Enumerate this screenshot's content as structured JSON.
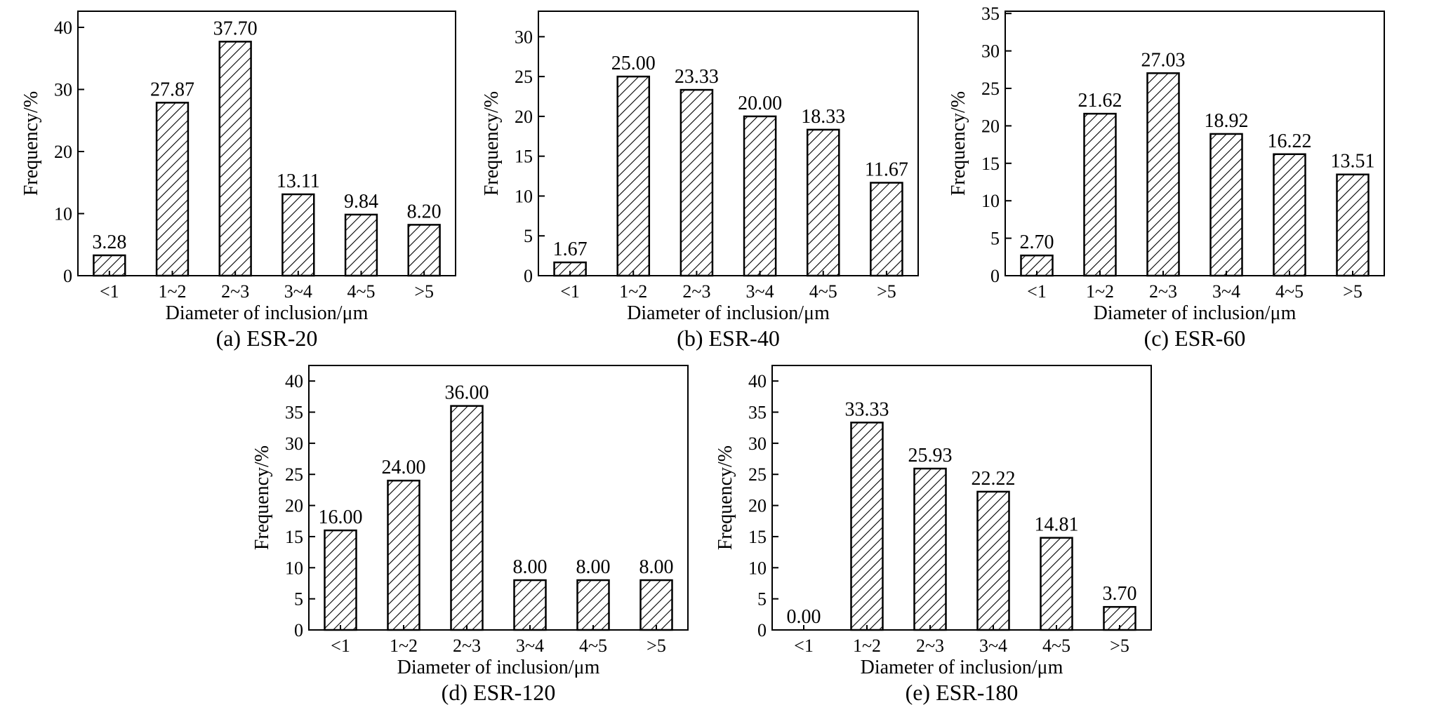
{
  "chart_data": [
    {
      "type": "bar",
      "caption": "(a) ESR-20",
      "xlabel": "Diameter of inclusion/μm",
      "ylabel": "Frequency/%",
      "categories": [
        "<1",
        "1~2",
        "2~3",
        "3~4",
        "4~5",
        ">5"
      ],
      "values": [
        3.28,
        27.87,
        37.7,
        13.11,
        9.84,
        8.2
      ],
      "value_labels": [
        "3.28",
        "27.87",
        "37.70",
        "13.11",
        "9.84",
        "8.20"
      ],
      "ylim": [
        0,
        42.6
      ],
      "yticks": [
        0,
        10,
        20,
        30,
        40
      ],
      "fill": "hatched",
      "grid": false
    },
    {
      "type": "bar",
      "caption": "(b) ESR-40",
      "xlabel": "Diameter of inclusion/μm",
      "ylabel": "Frequency/%",
      "categories": [
        "<1",
        "1~2",
        "2~3",
        "3~4",
        "4~5",
        ">5"
      ],
      "values": [
        1.67,
        25.0,
        23.33,
        20.0,
        18.33,
        11.67
      ],
      "value_labels": [
        "1.67",
        "25.00",
        "23.33",
        "20.00",
        "18.33",
        "11.67"
      ],
      "ylim": [
        0,
        33.2
      ],
      "yticks": [
        0,
        5,
        10,
        15,
        20,
        25,
        30
      ],
      "fill": "hatched",
      "grid": false
    },
    {
      "type": "bar",
      "caption": "(c) ESR-60",
      "xlabel": "Diameter of inclusion/μm",
      "ylabel": "Frequency/%",
      "categories": [
        "<1",
        "1~2",
        "2~3",
        "3~4",
        "4~5",
        ">5"
      ],
      "values": [
        2.7,
        21.62,
        27.03,
        18.92,
        16.22,
        13.51
      ],
      "value_labels": [
        "2.70",
        "21.62",
        "27.03",
        "18.92",
        "16.22",
        "13.51"
      ],
      "ylim": [
        0,
        35.3
      ],
      "yticks": [
        0,
        5,
        10,
        15,
        20,
        25,
        30,
        35
      ],
      "fill": "hatched",
      "grid": false
    },
    {
      "type": "bar",
      "caption": "(d) ESR-120",
      "xlabel": "Diameter of inclusion/μm",
      "ylabel": "Frequency/%",
      "categories": [
        "<1",
        "1~2",
        "2~3",
        "3~4",
        "4~5",
        ">5"
      ],
      "values": [
        16.0,
        24.0,
        36.0,
        8.0,
        8.0,
        8.0
      ],
      "value_labels": [
        "16.00",
        "24.00",
        "36.00",
        "8.00",
        "8.00",
        "8.00"
      ],
      "ylim": [
        0,
        42.5
      ],
      "yticks": [
        0,
        5,
        10,
        15,
        20,
        25,
        30,
        35,
        40
      ],
      "fill": "hatched",
      "grid": false
    },
    {
      "type": "bar",
      "caption": "(e) ESR-180",
      "xlabel": "Diameter of inclusion/μm",
      "ylabel": "Frequency/%",
      "categories": [
        "<1",
        "1~2",
        "2~3",
        "3~4",
        "4~5",
        ">5"
      ],
      "values": [
        0.0,
        33.33,
        25.93,
        22.22,
        14.81,
        3.7
      ],
      "value_labels": [
        "0.00",
        "33.33",
        "25.93",
        "22.22",
        "14.81",
        "3.70"
      ],
      "ylim": [
        0,
        42.5
      ],
      "yticks": [
        0,
        5,
        10,
        15,
        20,
        25,
        30,
        35,
        40
      ],
      "fill": "hatched",
      "grid": false
    }
  ]
}
